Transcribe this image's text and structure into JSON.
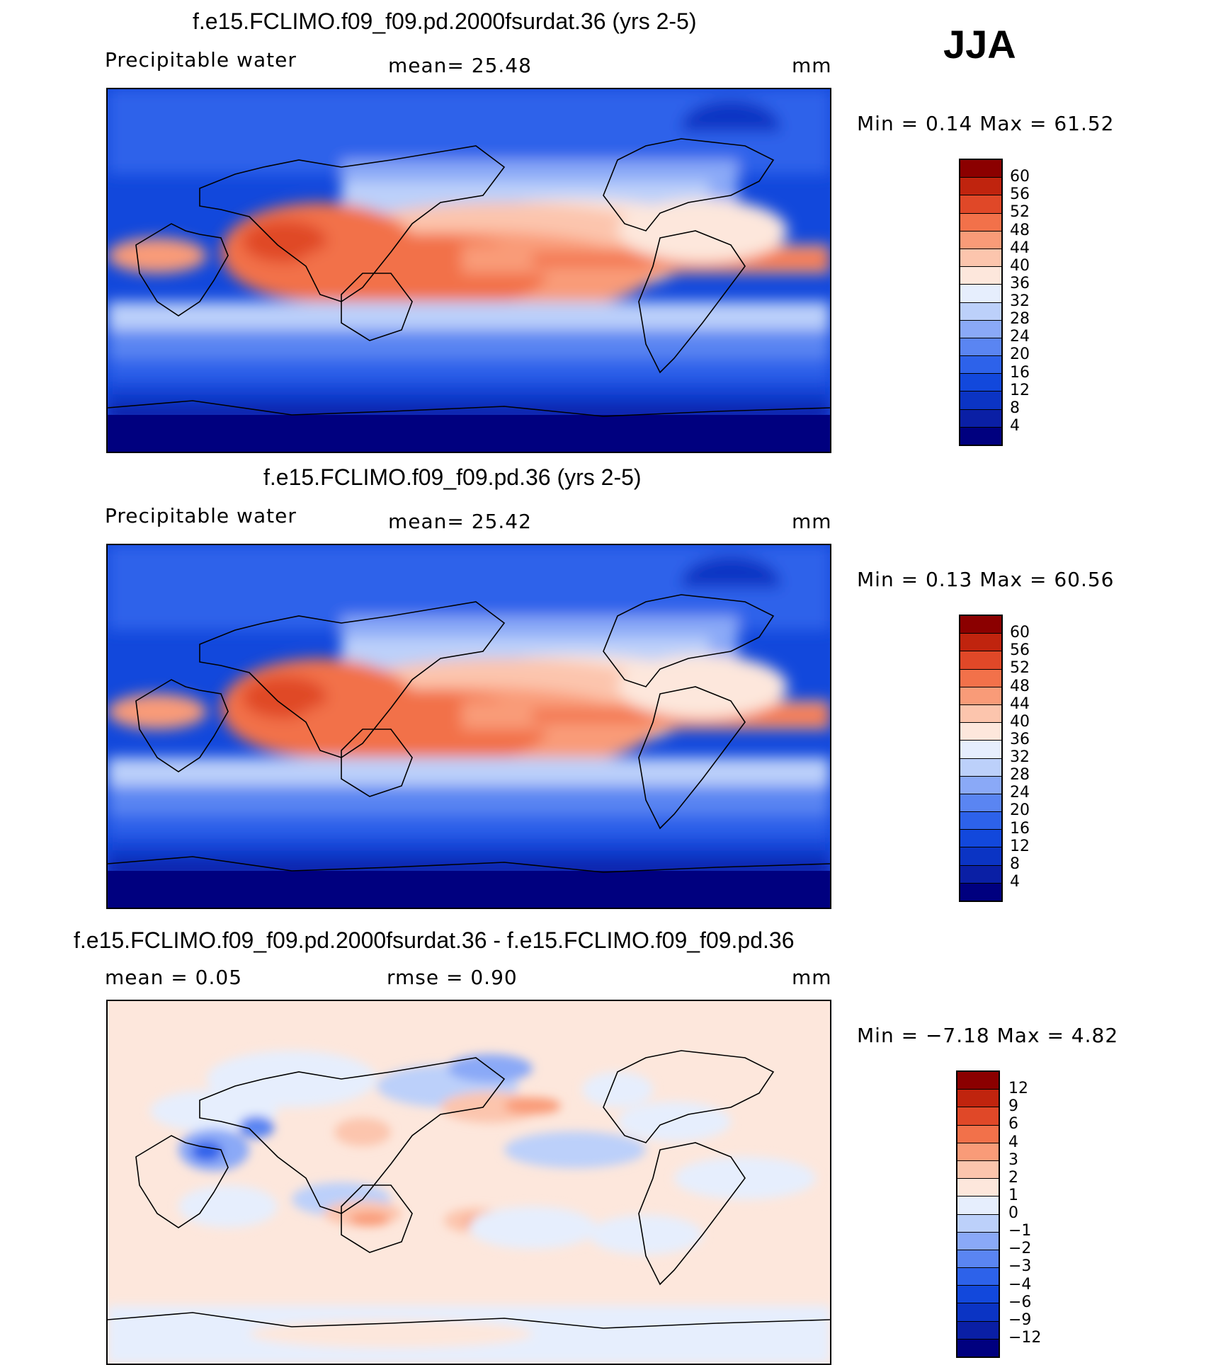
{
  "season": "JJA",
  "panels": [
    {
      "title": "f.e15.FCLIMO.f09_f09.pd.2000fsurdat.36 (yrs 2-5)",
      "left_label": "Precipitable water",
      "mid_label": "mean=   25.48",
      "right_label": "mm",
      "minmax": "Min =    0.14 Max =   61.52",
      "colorbar": {
        "ticks": [
          "4",
          "8",
          "12",
          "16",
          "20",
          "24",
          "28",
          "32",
          "36",
          "40",
          "44",
          "48",
          "52",
          "56",
          "60"
        ],
        "colors": [
          "#00007f",
          "#0a1fa5",
          "#0b34c4",
          "#1248dc",
          "#2d62ea",
          "#5a85f2",
          "#8aa9f7",
          "#bcd0fa",
          "#e6eefd",
          "#fde7dc",
          "#fcc5ad",
          "#f99b78",
          "#f2714a",
          "#e04828",
          "#c0240e",
          "#8b0000"
        ]
      }
    },
    {
      "title": "f.e15.FCLIMO.f09_f09.pd.36 (yrs 2-5)",
      "left_label": "Precipitable water",
      "mid_label": "mean=   25.42",
      "right_label": "mm",
      "minmax": "Min =    0.13 Max =   60.56",
      "colorbar": {
        "ticks": [
          "4",
          "8",
          "12",
          "16",
          "20",
          "24",
          "28",
          "32",
          "36",
          "40",
          "44",
          "48",
          "52",
          "56",
          "60"
        ],
        "colors": [
          "#00007f",
          "#0a1fa5",
          "#0b34c4",
          "#1248dc",
          "#2d62ea",
          "#5a85f2",
          "#8aa9f7",
          "#bcd0fa",
          "#e6eefd",
          "#fde7dc",
          "#fcc5ad",
          "#f99b78",
          "#f2714a",
          "#e04828",
          "#c0240e",
          "#8b0000"
        ]
      }
    },
    {
      "title": "f.e15.FCLIMO.f09_f09.pd.2000fsurdat.36 - f.e15.FCLIMO.f09_f09.pd.36",
      "left_label": "mean =    0.05",
      "mid_label": "rmse =    0.90",
      "right_label": "mm",
      "minmax": "Min =  −7.18 Max =    4.82",
      "colorbar": {
        "ticks": [
          "−12",
          "−9",
          "−6",
          "−4",
          "−3",
          "−2",
          "−1",
          "0",
          "1",
          "2",
          "3",
          "4",
          "6",
          "9",
          "12"
        ],
        "colors": [
          "#00007f",
          "#0a1fa5",
          "#0b34c4",
          "#1248dc",
          "#2d62ea",
          "#5a85f2",
          "#8aa9f7",
          "#bcd0fa",
          "#e6eefd",
          "#fde7dc",
          "#fcc5ad",
          "#f99b78",
          "#f2714a",
          "#e04828",
          "#c0240e",
          "#8b0000"
        ]
      }
    }
  ]
}
